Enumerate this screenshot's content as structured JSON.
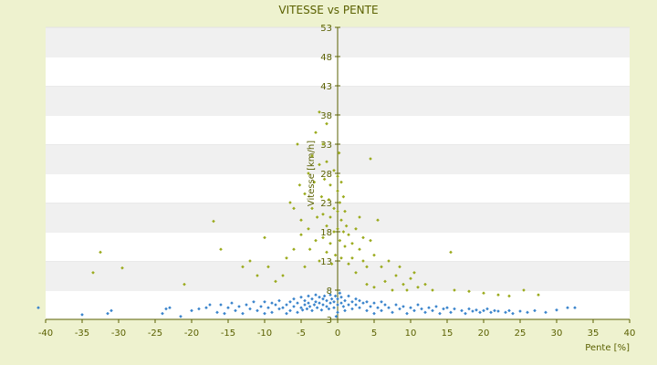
{
  "chart_data": {
    "type": "scatter",
    "title": "VITESSE vs PENTE",
    "xlabel": "Pente [%]",
    "ylabel": "Vitesse [km/h]",
    "xlim": [
      -40,
      40
    ],
    "ylim": [
      3,
      53
    ],
    "x_ticks": [
      -40,
      -35,
      -30,
      -25,
      -20,
      -15,
      -10,
      -5,
      0,
      5,
      10,
      15,
      20,
      25,
      30,
      35,
      40
    ],
    "y_ticks": [
      3,
      8,
      13,
      18,
      23,
      28,
      33,
      38,
      43,
      48,
      53
    ],
    "grid": true,
    "legend": "none",
    "colors": {
      "background": "#eef2cf",
      "plot_band_light": "#ffffff",
      "plot_band_dark": "#f0f0f0",
      "axis": "#5a6000",
      "series_1": "#9aaa1c",
      "series_2": "#3a84cc"
    },
    "series": [
      {
        "color": "#9aaa1c",
        "marker": "diamond",
        "points": [
          [
            -33.5,
            11.0
          ],
          [
            -32.5,
            14.5
          ],
          [
            -29.5,
            11.8
          ],
          [
            -21.0,
            9.0
          ],
          [
            -17.0,
            19.8
          ],
          [
            -16.0,
            15.0
          ],
          [
            -13.0,
            12.0
          ],
          [
            -12.0,
            13.0
          ],
          [
            -11.0,
            10.5
          ],
          [
            -10.0,
            17.0
          ],
          [
            -9.5,
            12.0
          ],
          [
            -8.5,
            9.5
          ],
          [
            -7.5,
            10.5
          ],
          [
            -7.0,
            13.5
          ],
          [
            -6.5,
            23.0
          ],
          [
            -6.0,
            22.0
          ],
          [
            -6.0,
            15.0
          ],
          [
            -5.5,
            33.0
          ],
          [
            -5.2,
            26.0
          ],
          [
            -5.0,
            20.0
          ],
          [
            -5.0,
            17.5
          ],
          [
            -4.5,
            24.5
          ],
          [
            -4.5,
            12.0
          ],
          [
            -4.0,
            28.0
          ],
          [
            -4.0,
            18.5
          ],
          [
            -3.8,
            15.0
          ],
          [
            -3.5,
            31.0
          ],
          [
            -3.5,
            22.0
          ],
          [
            -3.2,
            26.5
          ],
          [
            -3.0,
            35.0
          ],
          [
            -3.0,
            16.5
          ],
          [
            -2.8,
            20.5
          ],
          [
            -2.5,
            38.5
          ],
          [
            -2.5,
            29.5
          ],
          [
            -2.5,
            13.0
          ],
          [
            -2.2,
            24.0
          ],
          [
            -2.0,
            33.0
          ],
          [
            -2.0,
            21.0
          ],
          [
            -2.0,
            17.0
          ],
          [
            -1.8,
            27.0
          ],
          [
            -1.5,
            36.5
          ],
          [
            -1.5,
            30.0
          ],
          [
            -1.5,
            19.0
          ],
          [
            -1.5,
            14.5
          ],
          [
            -1.2,
            23.5
          ],
          [
            -1.0,
            26.0
          ],
          [
            -1.0,
            20.5
          ],
          [
            -1.0,
            16.0
          ],
          [
            -0.8,
            12.5
          ],
          [
            -0.5,
            28.5
          ],
          [
            -0.5,
            22.0
          ],
          [
            -0.5,
            18.0
          ],
          [
            -0.3,
            14.0
          ],
          [
            0.0,
            27.5
          ],
          [
            0.0,
            25.0
          ],
          [
            0.0,
            21.5
          ],
          [
            0.0,
            18.5
          ],
          [
            0.2,
            31.5
          ],
          [
            0.3,
            23.0
          ],
          [
            0.3,
            16.5
          ],
          [
            0.5,
            26.5
          ],
          [
            0.5,
            20.0
          ],
          [
            0.5,
            13.5
          ],
          [
            0.8,
            24.0
          ],
          [
            0.8,
            18.0
          ],
          [
            1.0,
            21.5
          ],
          [
            1.0,
            15.5
          ],
          [
            1.2,
            19.0
          ],
          [
            1.5,
            17.5
          ],
          [
            1.5,
            12.5
          ],
          [
            2.0,
            16.0
          ],
          [
            2.0,
            13.5
          ],
          [
            2.5,
            18.5
          ],
          [
            2.5,
            11.0
          ],
          [
            3.0,
            15.0
          ],
          [
            3.0,
            20.5
          ],
          [
            3.5,
            13.0
          ],
          [
            3.5,
            17.0
          ],
          [
            4.0,
            12.0
          ],
          [
            4.0,
            9.0
          ],
          [
            4.5,
            16.5
          ],
          [
            4.5,
            30.5
          ],
          [
            5.0,
            14.0
          ],
          [
            5.0,
            8.5
          ],
          [
            5.5,
            20.0
          ],
          [
            6.0,
            12.0
          ],
          [
            6.5,
            9.5
          ],
          [
            7.0,
            13.0
          ],
          [
            7.5,
            8.0
          ],
          [
            8.0,
            10.5
          ],
          [
            8.5,
            12.0
          ],
          [
            9.0,
            9.0
          ],
          [
            9.5,
            8.0
          ],
          [
            10.0,
            10.0
          ],
          [
            10.5,
            11.0
          ],
          [
            11.0,
            8.5
          ],
          [
            12.0,
            9.0
          ],
          [
            13.0,
            8.0
          ],
          [
            15.5,
            14.5
          ],
          [
            16.0,
            8.0
          ],
          [
            18.0,
            7.8
          ],
          [
            20.0,
            7.5
          ],
          [
            22.0,
            7.2
          ],
          [
            23.5,
            7.0
          ],
          [
            25.5,
            8.0
          ],
          [
            27.5,
            7.2
          ]
        ]
      },
      {
        "color": "#3a84cc",
        "marker": "diamond",
        "points": [
          [
            -41.0,
            5.0
          ],
          [
            -35.0,
            3.8
          ],
          [
            -31.5,
            4.0
          ],
          [
            -31.0,
            4.5
          ],
          [
            -24.0,
            4.0
          ],
          [
            -23.5,
            4.8
          ],
          [
            -23.0,
            5.0
          ],
          [
            -21.5,
            3.5
          ],
          [
            -20.0,
            4.5
          ],
          [
            -19.0,
            4.8
          ],
          [
            -18.0,
            5.0
          ],
          [
            -17.5,
            5.5
          ],
          [
            -16.5,
            4.2
          ],
          [
            -16.0,
            5.5
          ],
          [
            -15.5,
            4.0
          ],
          [
            -15.0,
            5.0
          ],
          [
            -14.5,
            5.8
          ],
          [
            -14.0,
            4.5
          ],
          [
            -13.5,
            5.2
          ],
          [
            -13.0,
            4.0
          ],
          [
            -12.5,
            5.5
          ],
          [
            -12.0,
            4.8
          ],
          [
            -11.5,
            6.0
          ],
          [
            -11.0,
            4.5
          ],
          [
            -10.5,
            5.2
          ],
          [
            -10.0,
            4.0
          ],
          [
            -10.0,
            6.0
          ],
          [
            -9.5,
            5.0
          ],
          [
            -9.0,
            5.8
          ],
          [
            -9.0,
            4.2
          ],
          [
            -8.5,
            5.5
          ],
          [
            -8.0,
            4.8
          ],
          [
            -8.0,
            6.2
          ],
          [
            -7.5,
            5.0
          ],
          [
            -7.0,
            5.5
          ],
          [
            -7.0,
            4.0
          ],
          [
            -6.5,
            6.0
          ],
          [
            -6.5,
            4.5
          ],
          [
            -6.0,
            5.2
          ],
          [
            -6.0,
            6.5
          ],
          [
            -5.5,
            5.8
          ],
          [
            -5.5,
            4.2
          ],
          [
            -5.0,
            5.0
          ],
          [
            -5.0,
            6.8
          ],
          [
            -4.8,
            4.6
          ],
          [
            -4.5,
            5.5
          ],
          [
            -4.5,
            6.2
          ],
          [
            -4.2,
            4.8
          ],
          [
            -4.0,
            5.8
          ],
          [
            -4.0,
            7.0
          ],
          [
            -3.8,
            5.2
          ],
          [
            -3.5,
            6.5
          ],
          [
            -3.5,
            4.5
          ],
          [
            -3.2,
            5.5
          ],
          [
            -3.0,
            6.0
          ],
          [
            -3.0,
            7.2
          ],
          [
            -2.8,
            5.0
          ],
          [
            -2.5,
            5.8
          ],
          [
            -2.5,
            6.8
          ],
          [
            -2.2,
            4.6
          ],
          [
            -2.0,
            5.5
          ],
          [
            -2.0,
            6.5
          ],
          [
            -1.8,
            7.0
          ],
          [
            -1.5,
            5.2
          ],
          [
            -1.5,
            6.2
          ],
          [
            -1.2,
            4.8
          ],
          [
            -1.0,
            5.8
          ],
          [
            -1.0,
            7.2
          ],
          [
            -0.8,
            6.5
          ],
          [
            -0.5,
            5.0
          ],
          [
            -0.5,
            6.0
          ],
          [
            -0.3,
            7.0
          ],
          [
            -0.2,
            3.5
          ],
          [
            0.0,
            5.5
          ],
          [
            0.0,
            6.5
          ],
          [
            0.0,
            4.2
          ],
          [
            0.3,
            7.5
          ],
          [
            0.5,
            5.8
          ],
          [
            0.5,
            6.8
          ],
          [
            0.8,
            5.2
          ],
          [
            1.0,
            6.2
          ],
          [
            1.0,
            4.5
          ],
          [
            1.5,
            5.5
          ],
          [
            1.5,
            7.0
          ],
          [
            2.0,
            6.0
          ],
          [
            2.0,
            4.8
          ],
          [
            2.5,
            5.5
          ],
          [
            2.5,
            6.5
          ],
          [
            3.0,
            5.0
          ],
          [
            3.0,
            6.2
          ],
          [
            3.5,
            5.8
          ],
          [
            4.0,
            4.5
          ],
          [
            4.0,
            6.0
          ],
          [
            4.5,
            5.2
          ],
          [
            5.0,
            5.8
          ],
          [
            5.0,
            4.0
          ],
          [
            5.5,
            5.0
          ],
          [
            6.0,
            6.0
          ],
          [
            6.0,
            4.5
          ],
          [
            6.5,
            5.5
          ],
          [
            7.0,
            5.0
          ],
          [
            7.5,
            4.2
          ],
          [
            8.0,
            5.5
          ],
          [
            8.5,
            4.8
          ],
          [
            9.0,
            5.2
          ],
          [
            9.5,
            4.0
          ],
          [
            10.0,
            5.0
          ],
          [
            10.5,
            4.5
          ],
          [
            11.0,
            5.5
          ],
          [
            11.5,
            4.8
          ],
          [
            12.0,
            4.2
          ],
          [
            12.5,
            5.0
          ],
          [
            13.0,
            4.5
          ],
          [
            13.5,
            5.2
          ],
          [
            14.0,
            4.0
          ],
          [
            14.5,
            4.8
          ],
          [
            15.0,
            5.0
          ],
          [
            15.5,
            4.2
          ],
          [
            16.0,
            4.8
          ],
          [
            17.0,
            4.5
          ],
          [
            17.5,
            4.0
          ],
          [
            18.0,
            4.8
          ],
          [
            18.5,
            4.4
          ],
          [
            19.0,
            4.6
          ],
          [
            19.5,
            4.2
          ],
          [
            20.0,
            4.5
          ],
          [
            20.5,
            4.8
          ],
          [
            21.0,
            4.2
          ],
          [
            21.5,
            4.5
          ],
          [
            22.0,
            4.4
          ],
          [
            23.0,
            4.2
          ],
          [
            23.5,
            4.5
          ],
          [
            24.0,
            4.0
          ],
          [
            25.0,
            4.4
          ],
          [
            26.0,
            4.2
          ],
          [
            27.0,
            4.5
          ],
          [
            28.5,
            4.2
          ],
          [
            30.0,
            4.6
          ],
          [
            31.5,
            5.0
          ],
          [
            32.5,
            5.0
          ]
        ]
      }
    ]
  }
}
